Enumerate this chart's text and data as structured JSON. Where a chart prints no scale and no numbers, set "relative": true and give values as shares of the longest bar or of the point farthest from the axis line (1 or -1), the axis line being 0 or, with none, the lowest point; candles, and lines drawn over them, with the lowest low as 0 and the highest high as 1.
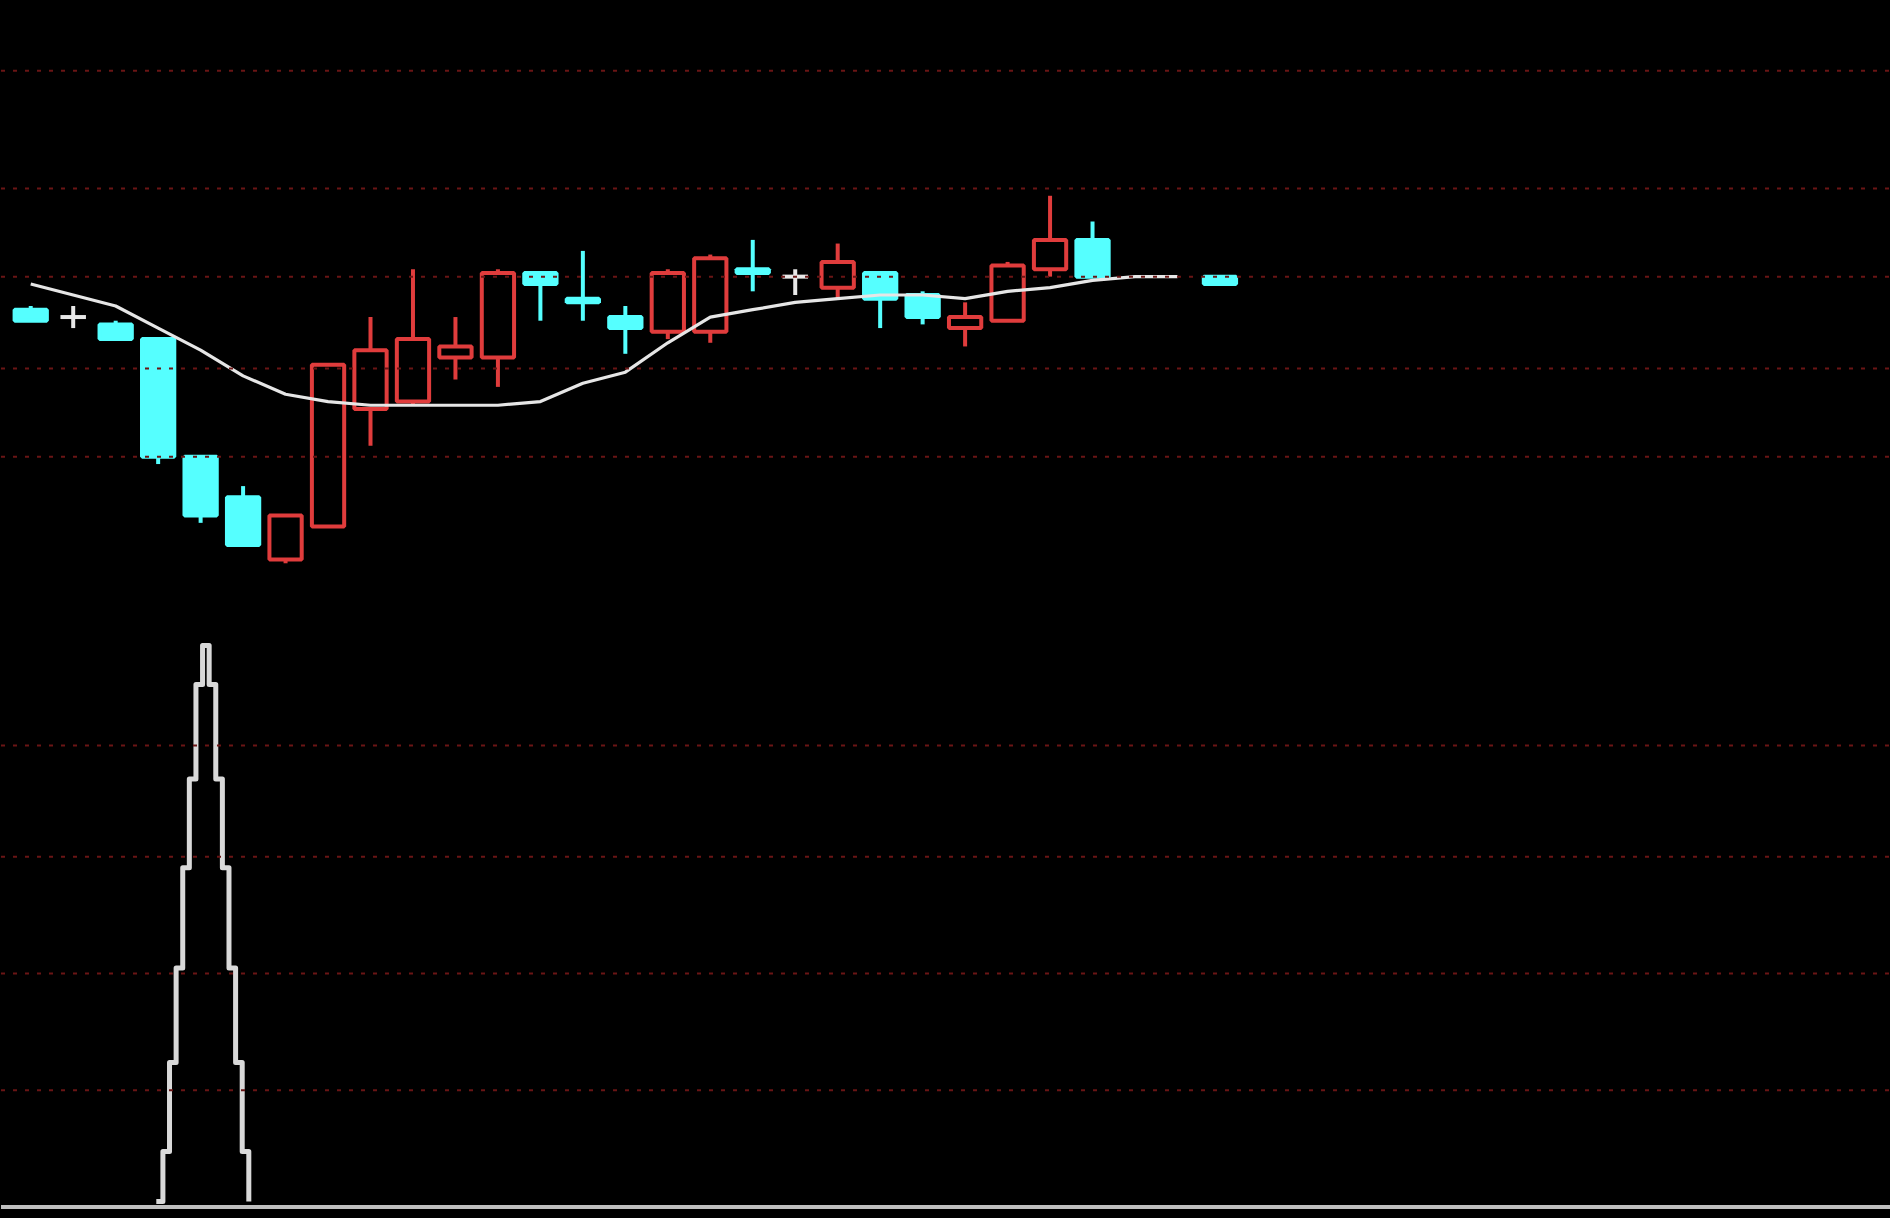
{
  "chart_data": [
    {
      "type": "candlestick",
      "relative": true,
      "ref_lines": [
        {
          "axis": "y",
          "value": 1.34,
          "color": "#6a1515",
          "line_style": "dashed"
        },
        {
          "axis": "y",
          "value": 1.02,
          "color": "#6a1515",
          "line_style": "dashed"
        },
        {
          "axis": "y",
          "value": 0.78,
          "color": "#6a1515",
          "line_style": "dashed"
        },
        {
          "axis": "y",
          "value": 0.53,
          "color": "#6a1515",
          "line_style": "dashed"
        },
        {
          "axis": "y",
          "value": 0.29,
          "color": "#6a1515",
          "line_style": "dashed"
        }
      ],
      "categories": [
        null,
        null,
        null,
        null,
        null,
        null,
        null,
        null,
        null,
        null,
        null,
        null,
        null,
        null,
        null,
        null,
        null,
        null,
        null,
        null,
        null,
        null,
        null,
        null,
        null,
        null,
        null,
        null,
        null
      ],
      "ohlc": [
        [
          0.69,
          0.7,
          0.66,
          0.66
        ],
        [
          0.67,
          0.7,
          0.64,
          0.67
        ],
        [
          0.65,
          0.66,
          0.61,
          0.61
        ],
        [
          0.61,
          0.61,
          0.27,
          0.29
        ],
        [
          0.29,
          0.29,
          0.11,
          0.13
        ],
        [
          0.18,
          0.21,
          0.05,
          0.05
        ],
        [
          0.01,
          0.13,
          0,
          0.13
        ],
        [
          0.1,
          0.54,
          0.1,
          0.54
        ],
        [
          0.42,
          0.67,
          0.32,
          0.58
        ],
        [
          0.44,
          0.8,
          0.43,
          0.61
        ],
        [
          0.56,
          0.67,
          0.5,
          0.59
        ],
        [
          0.56,
          0.8,
          0.48,
          0.79
        ],
        [
          0.79,
          0.79,
          0.66,
          0.76
        ],
        [
          0.72,
          0.85,
          0.66,
          0.71
        ],
        [
          0.67,
          0.7,
          0.57,
          0.64
        ],
        [
          0.63,
          0.8,
          0.61,
          0.79
        ],
        [
          0.63,
          0.84,
          0.6,
          0.83
        ],
        [
          0.8,
          0.88,
          0.74,
          0.79
        ],
        [
          0.78,
          0.8,
          0.73,
          0.78
        ],
        [
          0.75,
          0.87,
          0.72,
          0.82
        ],
        [
          0.79,
          0.79,
          0.64,
          0.72
        ],
        [
          0.73,
          0.74,
          0.65,
          0.67
        ],
        [
          0.64,
          0.71,
          0.59,
          0.67
        ],
        [
          0.66,
          0.82,
          0.66,
          0.81
        ],
        [
          0.8,
          1.0,
          0.78,
          0.88
        ],
        [
          0.88,
          0.93,
          0.78,
          0.78
        ],
        null,
        null,
        [
          0.78,
          0.78,
          0.76,
          0.76
        ]
      ],
      "colors": [
        "#55ffff",
        "#e8e8e8",
        "#55ffff",
        "#55ffff",
        "#55ffff",
        "#55ffff",
        "#e03c3c",
        "#e03c3c",
        "#e03c3c",
        "#e03c3c",
        "#e03c3c",
        "#e03c3c",
        "#55ffff",
        "#55ffff",
        "#55ffff",
        "#e03c3c",
        "#e03c3c",
        "#55ffff",
        "#e8e8e8",
        "#e03c3c",
        "#55ffff",
        "#55ffff",
        "#e03c3c",
        "#e03c3c",
        "#e03c3c",
        "#55ffff",
        "#55ffff",
        "#55ffff",
        "#55ffff"
      ],
      "series": [
        {
          "type": "line",
          "color": "#e6e6e6",
          "values": [
            0.76,
            0.73,
            0.7,
            0.64,
            0.58,
            0.51,
            0.46,
            0.44,
            0.43,
            0.43,
            0.43,
            0.43,
            0.44,
            0.49,
            0.52,
            0.6,
            0.67,
            0.69,
            0.71,
            0.72,
            0.73,
            0.73,
            0.72,
            0.74,
            0.75,
            0.77,
            0.78,
            0.78,
            null
          ]
        }
      ]
    },
    {
      "type": "step",
      "relative": true,
      "ref_lines": [
        {
          "axis": "y",
          "value": 0.82,
          "color": "#6a1515",
          "line_style": "dashed"
        },
        {
          "axis": "y",
          "value": 0.62,
          "color": "#6a1515",
          "line_style": "dashed"
        },
        {
          "axis": "y",
          "value": 0.41,
          "color": "#6a1515",
          "line_style": "dashed"
        },
        {
          "axis": "y",
          "value": 0.2,
          "color": "#6a1515",
          "line_style": "dashed"
        }
      ],
      "categories": [
        null,
        null,
        null,
        null,
        null,
        null,
        null,
        null,
        null,
        null,
        null,
        null,
        null,
        null,
        null
      ],
      "series": [
        {
          "color": "#d9d9d9",
          "values": [
            0,
            0.09,
            0.25,
            0.42,
            0.6,
            0.76,
            0.93,
            1,
            0.93,
            0.76,
            0.6,
            0.42,
            0.25,
            0.09,
            0
          ]
        }
      ]
    }
  ]
}
